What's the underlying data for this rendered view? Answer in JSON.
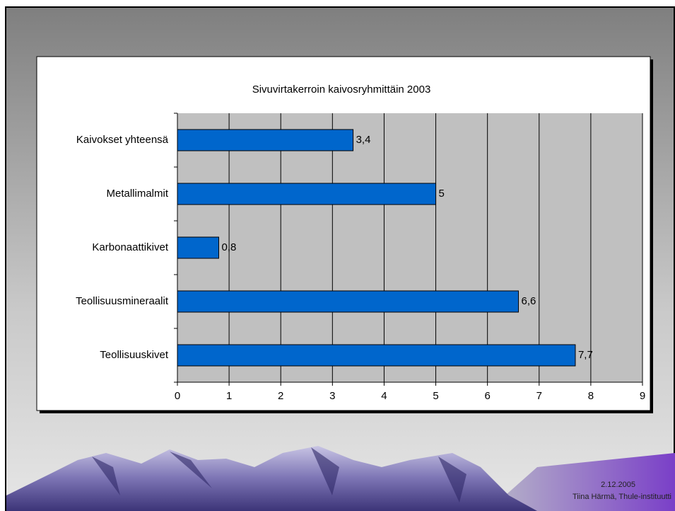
{
  "chart_data": {
    "type": "bar",
    "orientation": "horizontal",
    "title": "Sivuvirtakerroin kaivosryhmittäin 2003",
    "categories": [
      "Kaivokset yhteensä",
      "Metallimalmit",
      "Karbonaattikivet",
      "Teollisuusmineraalit",
      "Teollisuuskivet"
    ],
    "values": [
      3.4,
      5,
      0.8,
      6.6,
      7.7
    ],
    "value_labels": [
      "3,4",
      "5",
      "0,8",
      "6,6",
      "7,7"
    ],
    "color": "#0066cc",
    "xlim": [
      0,
      9
    ],
    "xticks": [
      0,
      1,
      2,
      3,
      4,
      5,
      6,
      7,
      8,
      9
    ],
    "grid": true
  },
  "footer": {
    "date": "2.12.2005",
    "author": "Tiina Härmä, Thule-instituutti"
  }
}
